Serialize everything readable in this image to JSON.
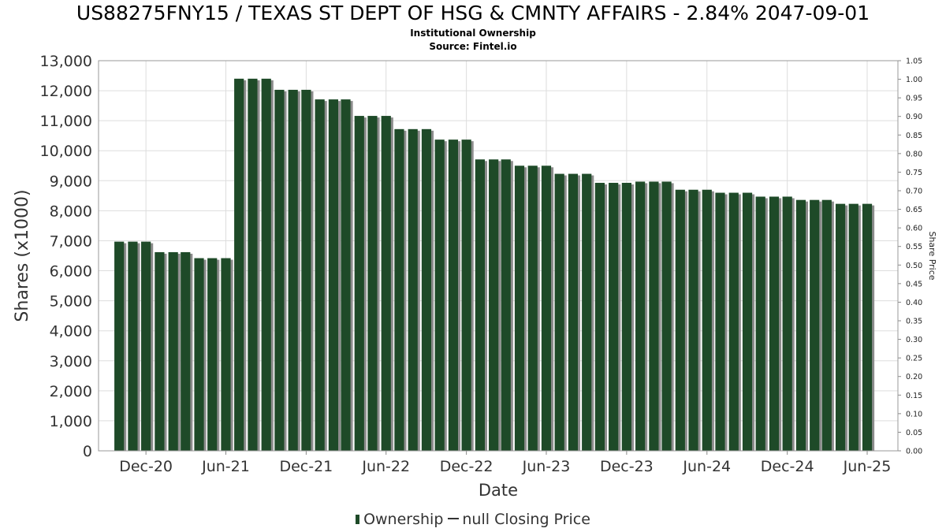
{
  "header": {
    "title": "US88275FNY15 / TEXAS ST DEPT OF HSG & CMNTY AFFAIRS - 2.84% 2047-09-01",
    "subtitle": "Institutional Ownership",
    "source": "Source: Fintel.io"
  },
  "legend": {
    "ownership": "Ownership",
    "price": "null Closing Price"
  },
  "colors": {
    "bar": "#1e4a28",
    "bar_shadow": "#8c8c8c",
    "grid": "#dddddd"
  },
  "chart_data": {
    "type": "bar",
    "xlabel": "Date",
    "ylabel": "Shares (x1000)",
    "y2label": "Share Price",
    "ylim": [
      0,
      13000
    ],
    "y2lim": [
      0,
      1.05
    ],
    "grid": true,
    "legend_position": "bottom",
    "y_ticks": [
      "0",
      "1,000",
      "2,000",
      "3,000",
      "4,000",
      "5,000",
      "6,000",
      "7,000",
      "8,000",
      "9,000",
      "10,000",
      "11,000",
      "12,000",
      "13,000"
    ],
    "y2_ticks": [
      "0.00",
      "0.05",
      "0.10",
      "0.15",
      "0.20",
      "0.25",
      "0.30",
      "0.35",
      "0.40",
      "0.45",
      "0.50",
      "0.55",
      "0.60",
      "0.65",
      "0.70",
      "0.75",
      "0.80",
      "0.85",
      "0.90",
      "0.95",
      "1.00",
      "1.05"
    ],
    "x_ticks": [
      {
        "label": "Dec-20",
        "date": "2020-12-01"
      },
      {
        "label": "Jun-21",
        "date": "2021-06-01"
      },
      {
        "label": "Dec-21",
        "date": "2021-12-01"
      },
      {
        "label": "Jun-22",
        "date": "2022-06-01"
      },
      {
        "label": "Dec-22",
        "date": "2022-12-01"
      },
      {
        "label": "Jun-23",
        "date": "2023-06-01"
      },
      {
        "label": "Dec-23",
        "date": "2023-12-01"
      },
      {
        "label": "Jun-24",
        "date": "2024-06-01"
      },
      {
        "label": "Dec-24",
        "date": "2024-12-01"
      },
      {
        "label": "Jun-25",
        "date": "2025-06-01"
      }
    ],
    "x_start": "2020-08-15",
    "x_end": "2025-08-10",
    "series": [
      {
        "name": "Ownership",
        "dates": [
          "2020-10-01",
          "2020-11-01",
          "2020-12-01",
          "2021-01-01",
          "2021-02-01",
          "2021-03-01",
          "2021-04-01",
          "2021-05-01",
          "2021-06-01",
          "2021-07-01",
          "2021-08-01",
          "2021-09-01",
          "2021-10-01",
          "2021-11-01",
          "2021-12-01",
          "2022-01-01",
          "2022-02-01",
          "2022-03-01",
          "2022-04-01",
          "2022-05-01",
          "2022-06-01",
          "2022-07-01",
          "2022-08-01",
          "2022-09-01",
          "2022-10-01",
          "2022-11-01",
          "2022-12-01",
          "2023-01-01",
          "2023-02-01",
          "2023-03-01",
          "2023-04-01",
          "2023-05-01",
          "2023-06-01",
          "2023-07-01",
          "2023-08-01",
          "2023-09-01",
          "2023-10-01",
          "2023-11-01",
          "2023-12-01",
          "2024-01-01",
          "2024-02-01",
          "2024-03-01",
          "2024-04-01",
          "2024-05-01",
          "2024-06-01",
          "2024-07-01",
          "2024-08-01",
          "2024-09-01",
          "2024-10-01",
          "2024-11-01",
          "2024-12-01",
          "2025-01-01",
          "2025-02-01",
          "2025-03-01",
          "2025-04-01",
          "2025-05-01",
          "2025-06-01"
        ],
        "values": [
          6970,
          6970,
          6970,
          6620,
          6620,
          6620,
          6420,
          6420,
          6420,
          12400,
          12400,
          12400,
          12030,
          12030,
          12030,
          11710,
          11710,
          11710,
          11160,
          11160,
          11160,
          10720,
          10720,
          10720,
          10370,
          10370,
          10370,
          9710,
          9710,
          9710,
          9500,
          9500,
          9500,
          9230,
          9230,
          9230,
          8930,
          8930,
          8930,
          8970,
          8970,
          8970,
          8700,
          8700,
          8700,
          8600,
          8600,
          8600,
          8470,
          8470,
          8470,
          8360,
          8360,
          8360,
          8230,
          8230,
          8230
        ]
      }
    ]
  }
}
